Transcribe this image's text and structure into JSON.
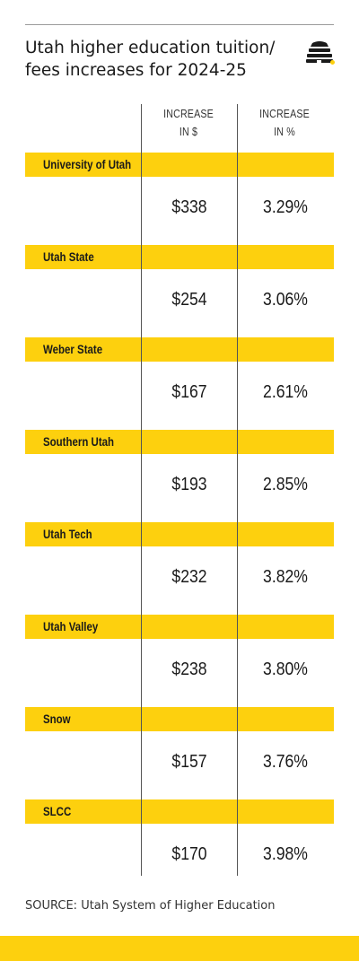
{
  "title": "Utah higher education tuition/ fees increases for 2024-25",
  "colors": {
    "accent": "#fdd00e",
    "text": "#1a1a1a",
    "rule": "#555555"
  },
  "logo_icon": "beehive-icon",
  "chart_data": {
    "type": "table",
    "columns": [
      "INCREASE\nIN $",
      "INCREASE\nIN %"
    ],
    "rows": [
      {
        "name": "University of Utah",
        "dollars": "$338",
        "percent": "3.29%"
      },
      {
        "name": "Utah State",
        "dollars": "$254",
        "percent": "3.06%"
      },
      {
        "name": "Weber State",
        "dollars": "$167",
        "percent": "2.61%"
      },
      {
        "name": "Southern Utah",
        "dollars": "$193",
        "percent": "2.85%"
      },
      {
        "name": "Utah Tech",
        "dollars": "$232",
        "percent": "3.82%"
      },
      {
        "name": "Utah Valley",
        "dollars": "$238",
        "percent": "3.80%"
      },
      {
        "name": "Snow",
        "dollars": "$157",
        "percent": "3.76%"
      },
      {
        "name": "SLCC",
        "dollars": "$170",
        "percent": "3.98%"
      }
    ]
  },
  "source": "SOURCE: Utah System of Higher Education"
}
